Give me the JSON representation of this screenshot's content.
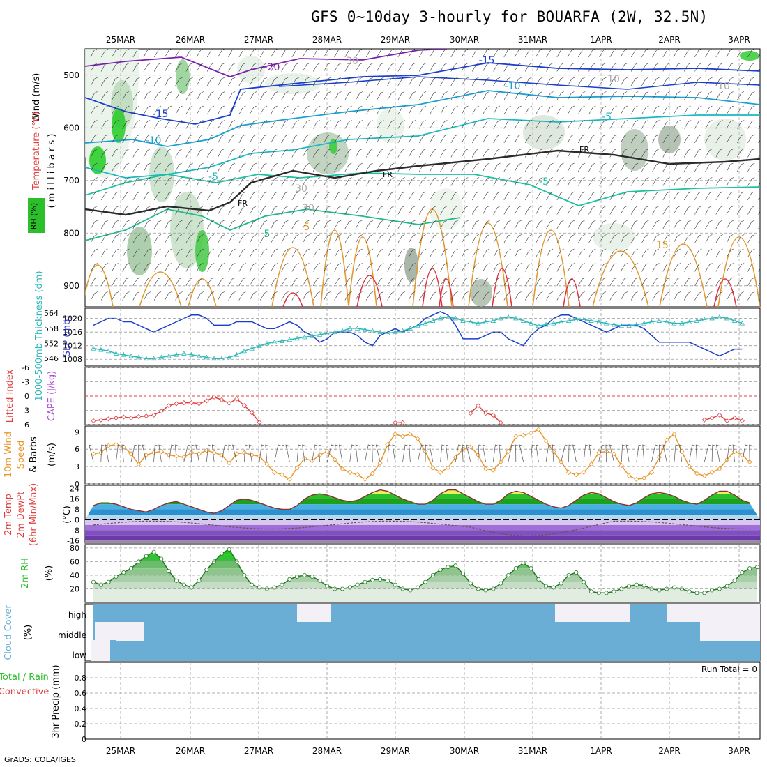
{
  "title": "GFS 0~10day 3-hourly for BOUARFA (2W, 32.5N)",
  "footer": "GrADS: COLA/IGES",
  "dates": [
    "25MAR",
    "26MAR",
    "27MAR",
    "28MAR",
    "29MAR",
    "30MAR",
    "31MAR",
    "1APR",
    "2APR",
    "3APR"
  ],
  "panels": {
    "upper": {
      "ylabel_wind": "Wind (m/s)",
      "ylabel_temp": "Temperature (°C)",
      "ylabel_mb": "( m i l l i b a r s )",
      "ylabel_rh": "RH (%)",
      "pressure_ticks": [
        "500",
        "600",
        "700",
        "800",
        "900"
      ],
      "freezing_label": "FR",
      "contour_labels": [
        "-20",
        "-15",
        "-15",
        "-10",
        "-10",
        "-5",
        "-5",
        "-5",
        "5",
        "5",
        "10",
        "15",
        "30",
        "30",
        "30",
        "10"
      ]
    },
    "slp": {
      "ylabel_left": "1000-500mb Thickness (dm)",
      "ylabel_right": "SLP (mb)",
      "left_ticks": [
        "564",
        "558",
        "552",
        "546"
      ],
      "right_ticks": [
        "1020",
        "1016",
        "1012",
        "1008"
      ]
    },
    "li": {
      "ylabel_a": "Lifted Index",
      "ylabel_b": "CAPE (J/kg)",
      "ticks": [
        "-6",
        "-3",
        "0",
        "3",
        "6"
      ]
    },
    "wind10": {
      "ylabel_a": "10m Wind",
      "ylabel_b": "Speed",
      "ylabel_c": "& Barbs",
      "ylabel_unit": "(m/s)",
      "ticks": [
        "9",
        "6",
        "3",
        "0"
      ]
    },
    "temp2m": {
      "ylabel_a": "2m Temp",
      "ylabel_b": "2m DewPt",
      "ylabel_c": "(6hr Min/Max)",
      "ylabel_unit": "(°C)",
      "ticks": [
        "24",
        "16",
        "8",
        "0",
        "-8",
        "-16"
      ]
    },
    "rh2m": {
      "ylabel_a": "2m RH",
      "ylabel_unit": "(%)",
      "ticks": [
        "80",
        "60",
        "40",
        "20"
      ]
    },
    "cloud": {
      "ylabel_a": "Cloud Cover",
      "ylabel_unit": "(%)",
      "levels": [
        "high",
        "middle",
        "low"
      ]
    },
    "precip": {
      "ylabel_a": "Total / Rain",
      "ylabel_b": "Convective",
      "ylabel_c": "3hr Precip (mm)",
      "ticks": [
        "0.8",
        "0.6",
        "0.4",
        "0.2",
        "0"
      ],
      "run_total": "Run Total = 0"
    }
  },
  "colors": {
    "slp": "#1a3fd0",
    "thickness": "#2cb8b8",
    "lifted_index": "#e04040",
    "wind_speed": "#e8962a",
    "rh_green": "#2bbf2b",
    "cloud_blue": "#6aaed6",
    "cloud_white": "#f4f0f8"
  },
  "chart_data": [
    {
      "type": "line",
      "name_key": "slp",
      "title": "SLP (mb)",
      "ylim": [
        1006,
        1023
      ],
      "x_step_hours": 3,
      "values": [
        1018,
        1019,
        1020,
        1020,
        1019,
        1019,
        1018,
        1017,
        1016,
        1017,
        1018,
        1019,
        1020,
        1021,
        1021,
        1020,
        1018,
        1018,
        1018,
        1019,
        1019,
        1019,
        1018,
        1017,
        1017,
        1018,
        1019,
        1018,
        1016,
        1015,
        1013,
        1014,
        1016,
        1016,
        1016,
        1015,
        1013,
        1012,
        1015,
        1016,
        1017,
        1016,
        1017,
        1018,
        1020,
        1021,
        1022,
        1021,
        1018,
        1014,
        1014,
        1014,
        1015,
        1016,
        1016,
        1014,
        1013,
        1012,
        1015,
        1017,
        1018,
        1020,
        1021,
        1021,
        1020,
        1019,
        1018,
        1017,
        1016,
        1017,
        1018,
        1018,
        1018,
        1017,
        1015,
        1013,
        1013,
        1013,
        1013,
        1013,
        1012,
        1011,
        1010,
        1009,
        1010,
        1011,
        1011
      ],
      "grid": true
    },
    {
      "type": "line",
      "name_key": "thickness",
      "title": "1000-500mb Thickness (dm)",
      "ylim": [
        543,
        566
      ],
      "x_step_hours": 3,
      "values": [
        550,
        549.5,
        549,
        548,
        547.5,
        547,
        546.5,
        546,
        546,
        546.5,
        547,
        547.5,
        548,
        547.5,
        547,
        546.5,
        546,
        546,
        546.5,
        547.5,
        549,
        550,
        551,
        552,
        552.5,
        553,
        553.5,
        554,
        554.5,
        555,
        555.5,
        556,
        556.5,
        557,
        558,
        558,
        557.5,
        557,
        556.5,
        556,
        556.5,
        557,
        558,
        559,
        560,
        561,
        562,
        562.5,
        562,
        561,
        560.5,
        560,
        560.5,
        561,
        562,
        562.5,
        562,
        561,
        560,
        559,
        559.5,
        560,
        560.5,
        561,
        561.5,
        561.5,
        561,
        560.5,
        560,
        559.5,
        559,
        559,
        559.5,
        560,
        560.5,
        561,
        560.5,
        560,
        560,
        560.5,
        561,
        561.5,
        562,
        562.5,
        562,
        561,
        560
      ],
      "grid": true
    },
    {
      "type": "line",
      "name_key": "lifted_index",
      "title": "Lifted Index",
      "ylim": [
        6,
        -6
      ],
      "x_step_hours": 3,
      "values": [
        5.2,
        5,
        4.8,
        4.6,
        4.4,
        4.6,
        4.3,
        4.2,
        4.0,
        3.2,
        2.0,
        1.6,
        1.4,
        1.4,
        1.6,
        1.0,
        0.2,
        0.8,
        1.5,
        0.6,
        2.0,
        3.5,
        5.5,
        null,
        null,
        null,
        null,
        null,
        null,
        null,
        null,
        null,
        null,
        null,
        null,
        null,
        null,
        null,
        null,
        null,
        5.6,
        5.6,
        null,
        null,
        null,
        null,
        null,
        null,
        null,
        null,
        3.6,
        2.0,
        3.6,
        4.0,
        5.6,
        null,
        null,
        null,
        null,
        null,
        null,
        null,
        null,
        null,
        null,
        null,
        null,
        null,
        null,
        null,
        null,
        null,
        null,
        null,
        null,
        null,
        null,
        null,
        null,
        null,
        null,
        5.0,
        4.6,
        4.0,
        5.2,
        4.6,
        5.2
      ],
      "grid": true
    },
    {
      "type": "line",
      "name_key": "wind_speed",
      "title": "10m Wind Speed (m/s)",
      "ylim": [
        0,
        10
      ],
      "x_step_hours": 3,
      "values": [
        5.2,
        5.4,
        6.6,
        6.8,
        6.4,
        5.2,
        3.4,
        5.0,
        5.4,
        5.6,
        5.0,
        4.8,
        4.6,
        5.4,
        5.2,
        5.8,
        5.4,
        5.0,
        3.6,
        5.2,
        5.4,
        5.0,
        4.8,
        3.4,
        2.0,
        1.6,
        0.8,
        2.8,
        4.4,
        4.0,
        5.0,
        5.6,
        4.2,
        2.6,
        2.0,
        1.6,
        0.8,
        1.8,
        3.6,
        6.8,
        8.6,
        8.2,
        8.6,
        7.8,
        5.6,
        2.8,
        2.0,
        2.8,
        4.6,
        6.0,
        6.4,
        5.0,
        2.6,
        2.4,
        3.8,
        5.6,
        8.2,
        8.4,
        8.8,
        9.4,
        7.4,
        5.6,
        3.8,
        2.0,
        1.6,
        2.0,
        3.4,
        5.4,
        5.6,
        5.2,
        3.2,
        1.4,
        0.8,
        1.0,
        2.0,
        4.6,
        7.6,
        8.6,
        5.6,
        3.0,
        1.8,
        1.4,
        2.0,
        2.6,
        4.2,
        5.6,
        5.0,
        3.8
      ],
      "grid": true
    },
    {
      "type": "area",
      "name_key": "temp2m",
      "title": "2m Temp (°C)",
      "ylim": [
        -18,
        26
      ],
      "x_step_hours": 3,
      "values": [
        11,
        13,
        13,
        12,
        10,
        8,
        7,
        6,
        8,
        11,
        13,
        14,
        12,
        10,
        8,
        6,
        5,
        7,
        11,
        15,
        16,
        15,
        13,
        11,
        9,
        8,
        8,
        11,
        16,
        19,
        20,
        19,
        17,
        15,
        14,
        15,
        18,
        21,
        23,
        22,
        19,
        16,
        14,
        12,
        12,
        15,
        20,
        23,
        23,
        20,
        17,
        14,
        12,
        12,
        15,
        20,
        22,
        21,
        18,
        15,
        12,
        10,
        9,
        11,
        15,
        19,
        21,
        20,
        17,
        14,
        12,
        11,
        13,
        17,
        20,
        21,
        20,
        18,
        15,
        13,
        12,
        15,
        19,
        22,
        22,
        19,
        15,
        13
      ],
      "grid": true
    },
    {
      "type": "area",
      "name_key": "rh2m",
      "title": "2m RH (%)",
      "ylim": [
        0,
        85
      ],
      "x_step_hours": 3,
      "values": [
        30,
        26,
        30,
        38,
        44,
        50,
        60,
        68,
        74,
        64,
        46,
        32,
        26,
        22,
        32,
        48,
        60,
        72,
        78,
        60,
        40,
        26,
        22,
        20,
        22,
        26,
        34,
        38,
        40,
        38,
        32,
        24,
        20,
        20,
        22,
        26,
        30,
        33,
        34,
        32,
        26,
        20,
        18,
        22,
        30,
        40,
        48,
        52,
        54,
        42,
        28,
        20,
        18,
        20,
        28,
        40,
        50,
        58,
        50,
        34,
        24,
        22,
        28,
        40,
        44,
        30,
        16,
        14,
        14,
        16,
        20,
        24,
        26,
        25,
        20,
        18,
        20,
        22,
        20,
        16,
        14,
        14,
        18,
        20,
        24,
        32,
        44,
        50,
        52
      ],
      "grid": true
    },
    {
      "type": "bar",
      "name_key": "precip",
      "title": "3hr Precip (mm)",
      "ylim": [
        0,
        1
      ],
      "values": [
        0
      ],
      "grid": true
    }
  ]
}
